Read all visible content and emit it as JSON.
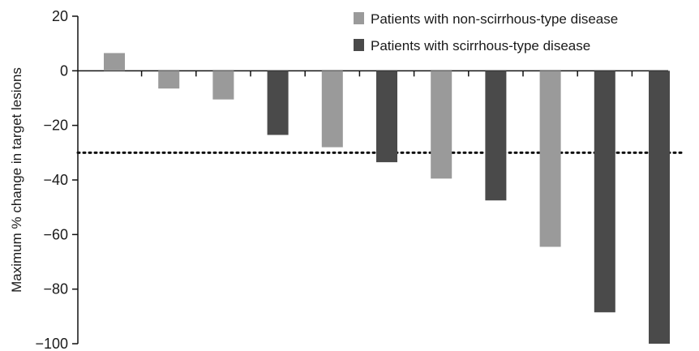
{
  "chart_data": {
    "type": "bar",
    "ylabel": "Maximum % change in target lesions",
    "ylim": [
      -100,
      20
    ],
    "yticks": [
      20,
      0,
      -20,
      -40,
      -60,
      -80,
      -100
    ],
    "reference_line": {
      "value": -30,
      "style": "dotted"
    },
    "legend_position": "top-right",
    "series": [
      {
        "name": "Patients with non-scirrhous-type disease",
        "color": "#9a9a9a"
      },
      {
        "name": "Patients with scirrhous-type disease",
        "color": "#4a4a4a"
      }
    ],
    "bars": [
      {
        "value": 6.5,
        "series": 0
      },
      {
        "value": -6.5,
        "series": 0
      },
      {
        "value": -10.5,
        "series": 0
      },
      {
        "value": -23.5,
        "series": 1
      },
      {
        "value": -28,
        "series": 0
      },
      {
        "value": -33.5,
        "series": 1
      },
      {
        "value": -39.5,
        "series": 0
      },
      {
        "value": -47.5,
        "series": 1
      },
      {
        "value": -64.5,
        "series": 0
      },
      {
        "value": -88.5,
        "series": 1
      },
      {
        "value": -100,
        "series": 1
      }
    ]
  }
}
